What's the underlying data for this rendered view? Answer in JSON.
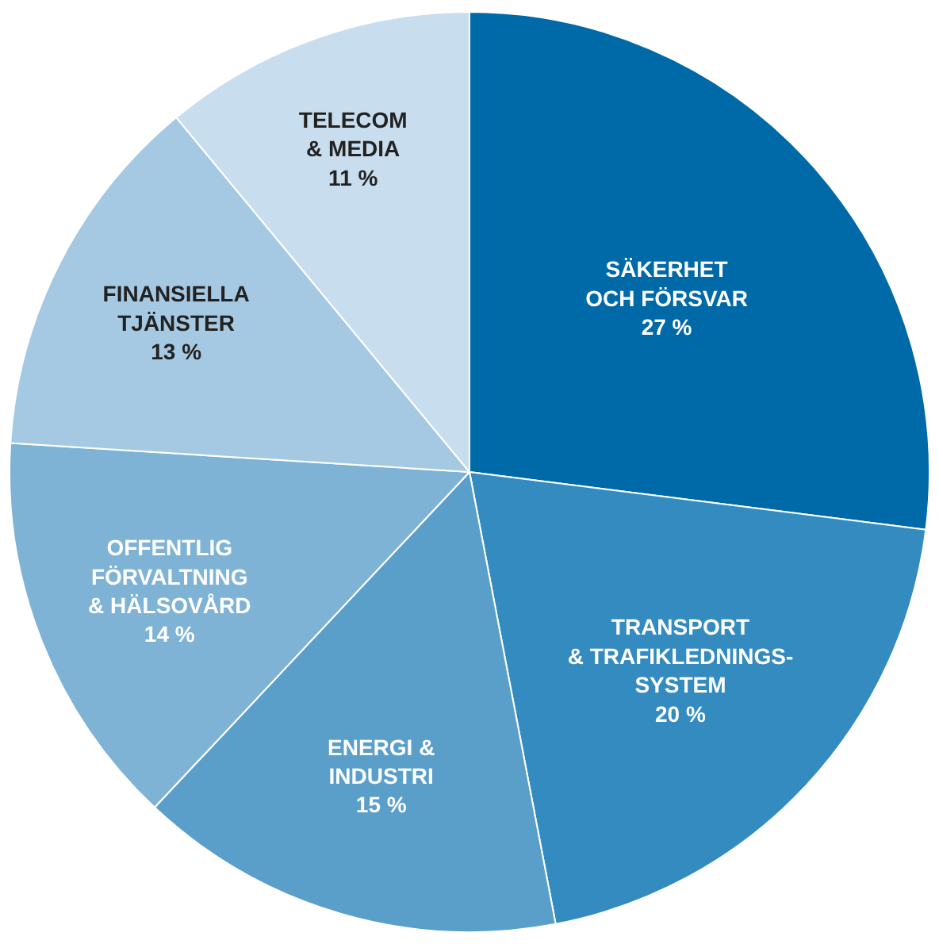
{
  "chart_data": {
    "type": "pie",
    "categories": [
      "SÄKERHET\nOCH FÖRSVAR",
      "TRANSPORT\n& TRAFIKLEDNINGS-\nSYSTEM",
      "ENERGI &\nINDUSTRI",
      "OFFENTLIG\nFÖRVALTNING\n& HÄLSOVÅRD",
      "FINANSIELLA\nTJÄNSTER",
      "TELECOM\n& MEDIA"
    ],
    "values": [
      27,
      20,
      15,
      14,
      13,
      11
    ],
    "value_labels": [
      "27 %",
      "20 %",
      "15 %",
      "14 %",
      "13 %",
      "11 %"
    ],
    "colors": [
      "#0069a8",
      "#348bbf",
      "#5a9fca",
      "#7fb3d5",
      "#a5c9e2",
      "#c8dded"
    ],
    "legend": false
  }
}
